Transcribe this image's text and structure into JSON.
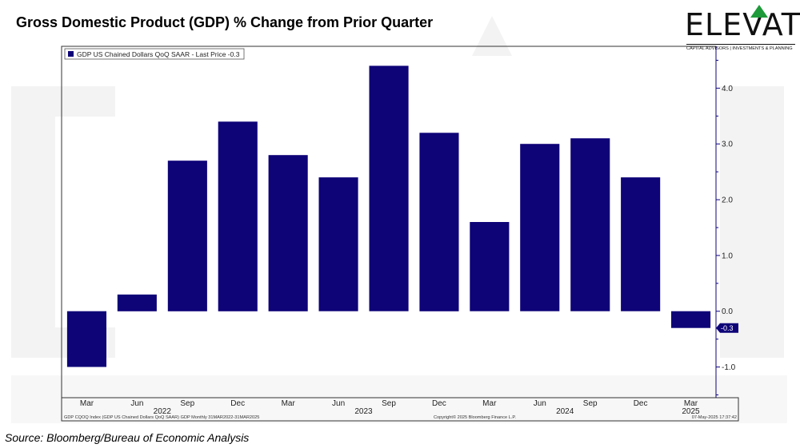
{
  "header": {
    "title": "Gross Domestic Product (GDP) % Change from Prior Quarter"
  },
  "logo": {
    "word": "ELEVATE",
    "subtitle": "CAPITAL ADVISORS | INVESTMENTS & PLANNING"
  },
  "source": "Source: Bloomberg/Bureau of Economic Analysis",
  "colors": {
    "bar": "#0e0377",
    "axis": "#0e0377",
    "logo_arrow": "#1f9a3a"
  },
  "chart_data": {
    "type": "bar",
    "title": "Gross Domestic Product (GDP) % Change from Prior Quarter",
    "legend": "GDP US Chained Dollars QoQ SAAR - Last Price -0.3",
    "legend_position": "top-left",
    "series": [
      {
        "name": "GDP US Chained Dollars QoQ SAAR",
        "values": [
          -1.0,
          0.3,
          2.7,
          3.4,
          2.8,
          2.4,
          4.4,
          3.2,
          1.6,
          3.0,
          3.1,
          2.4,
          -0.3
        ]
      }
    ],
    "categories": [
      "Mar",
      "Jun",
      "Sep",
      "Dec",
      "Mar",
      "Jun",
      "Sep",
      "Dec",
      "Mar",
      "Jun",
      "Sep",
      "Dec",
      "Mar"
    ],
    "year_labels": [
      {
        "label": "2022",
        "category_index": 1.5
      },
      {
        "label": "2023",
        "category_index": 5.5
      },
      {
        "label": "2024",
        "category_index": 9.5
      },
      {
        "label": "2025",
        "category_index": 12
      }
    ],
    "y_ticks": [
      "-1.0",
      "0.0",
      "1.0",
      "2.0",
      "3.0",
      "4.0"
    ],
    "ylim": [
      -1.55,
      4.75
    ],
    "last_price_label": "-0.3",
    "last_price_value": -0.3,
    "axis_position": "right",
    "grid": false,
    "footer_left": "GDP CQOQ Index (GDP US Chained Dollars QoQ SAAR) GDP  Monthly 31MAR2022-31MAR2025",
    "footer_center": "Copyright© 2025 Bloomberg Finance L.P.",
    "footer_right": "07-May-2025 17:37:42",
    "xlabel": "",
    "ylabel": ""
  }
}
